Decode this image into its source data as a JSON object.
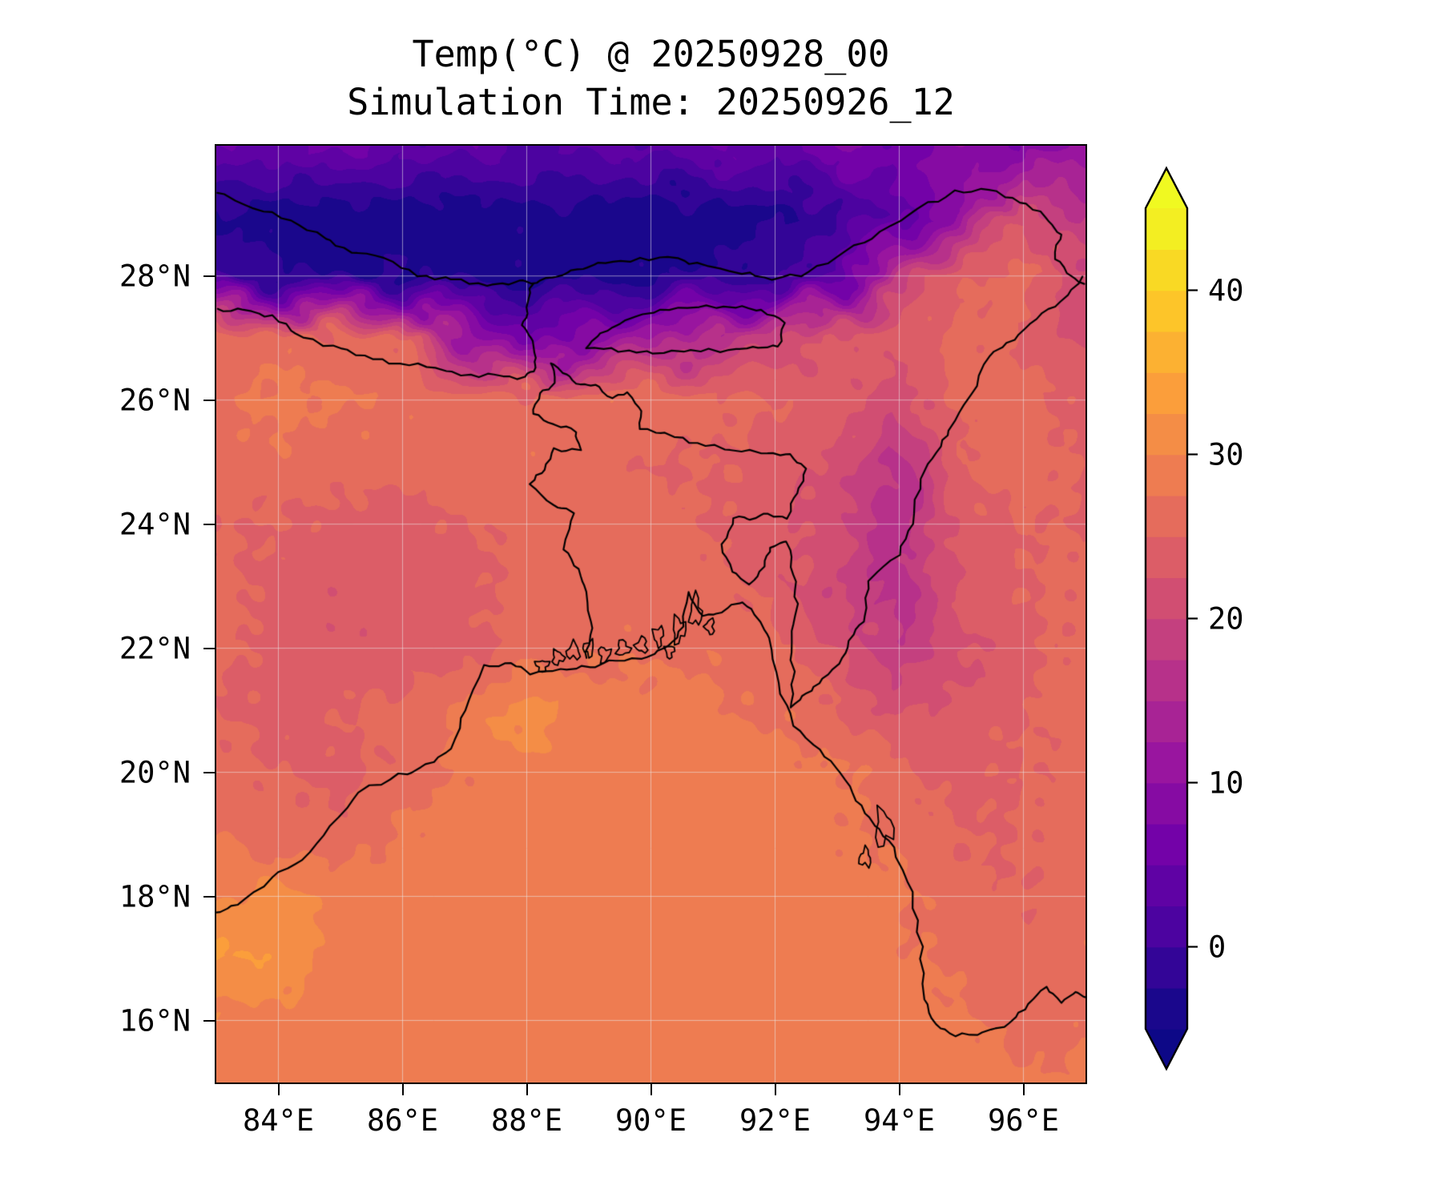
{
  "figure": {
    "title_line1": "Temp(°C) @ 20250928_00",
    "title_line2": "Simulation Time: 20250926_12",
    "text_color": "#000000",
    "background": "#ffffff"
  },
  "axes": {
    "lon_range": [
      83.0,
      97.0
    ],
    "lat_range": [
      15.0,
      30.1
    ],
    "x_ticks": [
      {
        "value": 84,
        "label": "84°E"
      },
      {
        "value": 86,
        "label": "86°E"
      },
      {
        "value": 88,
        "label": "88°E"
      },
      {
        "value": 90,
        "label": "90°E"
      },
      {
        "value": 92,
        "label": "92°E"
      },
      {
        "value": 94,
        "label": "94°E"
      },
      {
        "value": 96,
        "label": "96°E"
      }
    ],
    "y_ticks": [
      {
        "value": 16,
        "label": "16°N"
      },
      {
        "value": 18,
        "label": "18°N"
      },
      {
        "value": 20,
        "label": "20°N"
      },
      {
        "value": 22,
        "label": "22°N"
      },
      {
        "value": 24,
        "label": "24°N"
      },
      {
        "value": 26,
        "label": "26°N"
      },
      {
        "value": 28,
        "label": "28°N"
      }
    ]
  },
  "colorbar": {
    "ticks": [
      {
        "value": 0,
        "label": "0"
      },
      {
        "value": 10,
        "label": "10"
      },
      {
        "value": 20,
        "label": "20"
      },
      {
        "value": 30,
        "label": "30"
      },
      {
        "value": 40,
        "label": "40"
      }
    ],
    "level_min": -5,
    "level_max": 45,
    "level_step": 2.5,
    "extend": "both",
    "colormap": "plasma",
    "colormap_stops": [
      "#0d0887",
      "#46039f",
      "#7201a8",
      "#9c179e",
      "#bd3786",
      "#d8576b",
      "#ed7953",
      "#fb9f3a",
      "#fdca26",
      "#f0f921"
    ]
  },
  "chart_data": {
    "type": "heatmap",
    "subtype": "filled_contour_map",
    "title": "Temp(°C) @ 20250928_00",
    "subtitle": "Simulation Time: 20250926_12",
    "variable": "Temperature",
    "units": "°C",
    "valid_time": "20250928_00",
    "simulation_time": "20250926_12",
    "x_tick_labels": [
      "84°E",
      "86°E",
      "88°E",
      "90°E",
      "92°E",
      "94°E",
      "96°E"
    ],
    "y_tick_labels": [
      "16°N",
      "18°N",
      "20°N",
      "22°N",
      "24°N",
      "26°N",
      "28°N"
    ],
    "colorbar_tick_values": [
      0,
      10,
      20,
      30,
      40
    ],
    "grid": {
      "lons": [
        83,
        84,
        85,
        86,
        87,
        88,
        89,
        90,
        91,
        92,
        93,
        94,
        95,
        96,
        97
      ],
      "lats": [
        30,
        29,
        28,
        27,
        26,
        25,
        24,
        23,
        22,
        21,
        20,
        19,
        18,
        17,
        16,
        15
      ],
      "values_c": [
        [
          6,
          3,
          8,
          2,
          5,
          1,
          4,
          2,
          6,
          3,
          8,
          5,
          10,
          7,
          12
        ],
        [
          -3,
          -4,
          -5,
          -4,
          -5,
          -3,
          -4,
          -5,
          -4,
          -3,
          -1,
          4,
          10,
          22,
          16
        ],
        [
          0,
          -2,
          -3,
          -2,
          -4,
          -3,
          -4,
          -3,
          -2,
          -1,
          3,
          18,
          25,
          26,
          21
        ],
        [
          26,
          27,
          26,
          25,
          12,
          6,
          9,
          13,
          16,
          20,
          23,
          24,
          26,
          25,
          21
        ],
        [
          27,
          28,
          28,
          27,
          27,
          26,
          27,
          27,
          26,
          25,
          24,
          21,
          26,
          26,
          24
        ],
        [
          26,
          27,
          26,
          26,
          26,
          27,
          26,
          25,
          25,
          24,
          22,
          16,
          25,
          26,
          25
        ],
        [
          25,
          25,
          24,
          24,
          25,
          26,
          26,
          26,
          25,
          23,
          21,
          15,
          24,
          25,
          25
        ],
        [
          26,
          24,
          23,
          24,
          24,
          26,
          26,
          26,
          26,
          24,
          20,
          16,
          23,
          25,
          26
        ],
        [
          26,
          24,
          23,
          23,
          24,
          26,
          27,
          27,
          27,
          26,
          22,
          18,
          22,
          24,
          26
        ],
        [
          25,
          24,
          25,
          26,
          28,
          32,
          28,
          29,
          28,
          27,
          25,
          22,
          23,
          25,
          26
        ],
        [
          26,
          25,
          24,
          26,
          28,
          29,
          29,
          29,
          29,
          29,
          28,
          26,
          24,
          25,
          26
        ],
        [
          27,
          26,
          26,
          28,
          29,
          29,
          29,
          29,
          29,
          29,
          28,
          27,
          25,
          25,
          27
        ],
        [
          30,
          31,
          29,
          29,
          29,
          29,
          29,
          29,
          29,
          29,
          29,
          28,
          26,
          25,
          27
        ],
        [
          33,
          32,
          29,
          29,
          29,
          29,
          29,
          29,
          29,
          29,
          29,
          28,
          27,
          26,
          27
        ],
        [
          29,
          29,
          29,
          29,
          29,
          29,
          29,
          29,
          29,
          29,
          29,
          29,
          28,
          26,
          27
        ],
        [
          29,
          29,
          29,
          29,
          29,
          29,
          29,
          29,
          29,
          29,
          29,
          29,
          29,
          28,
          28
        ]
      ]
    },
    "overlays": {
      "coastlines": [
        [
          [
            83.0,
            17.75
          ],
          [
            83.35,
            17.85
          ],
          [
            83.9,
            18.3
          ],
          [
            84.4,
            18.6
          ],
          [
            84.85,
            19.15
          ],
          [
            85.3,
            19.7
          ],
          [
            85.95,
            19.95
          ],
          [
            86.4,
            20.1
          ],
          [
            86.8,
            20.4
          ],
          [
            87.0,
            21.0
          ],
          [
            87.3,
            21.7
          ],
          [
            87.75,
            21.75
          ],
          [
            88.05,
            21.6
          ],
          [
            88.55,
            21.65
          ],
          [
            89.0,
            21.7
          ],
          [
            89.45,
            21.8
          ],
          [
            89.95,
            21.85
          ],
          [
            90.3,
            22.05
          ],
          [
            90.5,
            22.35
          ],
          [
            90.6,
            22.9
          ],
          [
            90.85,
            22.5
          ],
          [
            91.15,
            22.6
          ],
          [
            91.5,
            22.75
          ],
          [
            91.75,
            22.5
          ],
          [
            91.9,
            22.15
          ],
          [
            92.05,
            21.45
          ],
          [
            92.3,
            20.75
          ],
          [
            92.7,
            20.35
          ],
          [
            93.05,
            20.0
          ],
          [
            93.3,
            19.55
          ],
          [
            93.6,
            19.15
          ],
          [
            93.9,
            18.8
          ],
          [
            94.2,
            18.05
          ],
          [
            94.35,
            17.2
          ],
          [
            94.4,
            16.35
          ],
          [
            94.6,
            15.95
          ],
          [
            94.9,
            15.75
          ],
          [
            95.35,
            15.8
          ],
          [
            95.8,
            15.95
          ],
          [
            96.1,
            16.25
          ],
          [
            96.35,
            16.55
          ],
          [
            96.6,
            16.3
          ],
          [
            96.85,
            16.45
          ],
          [
            97.0,
            16.4
          ]
        ]
      ],
      "borders": {
        "himalaya_crest": [
          [
            83.0,
            29.35
          ],
          [
            83.6,
            29.1
          ],
          [
            84.2,
            28.9
          ],
          [
            84.75,
            28.6
          ],
          [
            85.15,
            28.4
          ],
          [
            85.7,
            28.3
          ],
          [
            86.25,
            28.0
          ],
          [
            86.8,
            27.95
          ],
          [
            87.35,
            27.85
          ],
          [
            87.85,
            27.9
          ],
          [
            88.15,
            27.9
          ],
          [
            88.5,
            28.0
          ],
          [
            88.8,
            28.1
          ],
          [
            89.15,
            28.2
          ],
          [
            89.65,
            28.25
          ],
          [
            90.3,
            28.3
          ],
          [
            90.75,
            28.2
          ],
          [
            91.45,
            28.05
          ],
          [
            91.95,
            27.95
          ],
          [
            92.55,
            28.05
          ],
          [
            93.15,
            28.4
          ],
          [
            93.7,
            28.7
          ],
          [
            94.3,
            29.1
          ],
          [
            94.9,
            29.35
          ],
          [
            95.45,
            29.4
          ],
          [
            95.95,
            29.2
          ],
          [
            96.35,
            28.95
          ],
          [
            96.6,
            28.65
          ],
          [
            96.5,
            28.3
          ],
          [
            96.75,
            28.0
          ],
          [
            97.0,
            27.85
          ]
        ],
        "nepal_south": [
          [
            83.0,
            27.45
          ],
          [
            83.45,
            27.45
          ],
          [
            83.9,
            27.35
          ],
          [
            84.3,
            27.05
          ],
          [
            84.75,
            26.9
          ],
          [
            85.25,
            26.75
          ],
          [
            85.8,
            26.6
          ],
          [
            86.4,
            26.55
          ],
          [
            86.95,
            26.4
          ],
          [
            87.5,
            26.4
          ],
          [
            87.95,
            26.35
          ],
          [
            88.1,
            26.45
          ],
          [
            88.15,
            26.7
          ],
          [
            88.05,
            27.0
          ],
          [
            87.95,
            27.2
          ],
          [
            88.0,
            27.5
          ],
          [
            88.1,
            27.9
          ]
        ],
        "bhutan": [
          [
            88.95,
            26.85
          ],
          [
            89.5,
            26.8
          ],
          [
            90.05,
            26.75
          ],
          [
            90.65,
            26.8
          ],
          [
            91.25,
            26.8
          ],
          [
            91.65,
            26.85
          ],
          [
            92.05,
            26.85
          ],
          [
            92.15,
            27.25
          ],
          [
            91.8,
            27.45
          ],
          [
            91.35,
            27.5
          ],
          [
            90.75,
            27.5
          ],
          [
            90.15,
            27.45
          ],
          [
            89.6,
            27.3
          ],
          [
            89.2,
            27.05
          ],
          [
            88.95,
            26.85
          ]
        ],
        "bangladesh": [
          [
            88.95,
            21.85
          ],
          [
            89.05,
            22.3
          ],
          [
            88.95,
            22.9
          ],
          [
            88.85,
            23.25
          ],
          [
            88.6,
            23.6
          ],
          [
            88.75,
            24.2
          ],
          [
            88.4,
            24.3
          ],
          [
            88.05,
            24.65
          ],
          [
            88.3,
            24.9
          ],
          [
            88.45,
            25.2
          ],
          [
            88.85,
            25.2
          ],
          [
            88.8,
            25.5
          ],
          [
            88.45,
            25.6
          ],
          [
            88.1,
            25.8
          ],
          [
            88.2,
            26.1
          ],
          [
            88.45,
            26.3
          ],
          [
            88.4,
            26.6
          ],
          [
            88.65,
            26.4
          ],
          [
            88.85,
            26.25
          ],
          [
            89.1,
            26.25
          ],
          [
            89.35,
            26.0
          ],
          [
            89.6,
            26.15
          ],
          [
            89.8,
            25.9
          ],
          [
            89.85,
            25.55
          ],
          [
            90.25,
            25.45
          ],
          [
            90.75,
            25.3
          ],
          [
            91.3,
            25.2
          ],
          [
            91.9,
            25.15
          ],
          [
            92.25,
            25.1
          ],
          [
            92.5,
            24.9
          ],
          [
            92.35,
            24.5
          ],
          [
            92.2,
            24.1
          ],
          [
            91.9,
            24.15
          ],
          [
            91.6,
            24.1
          ],
          [
            91.35,
            24.1
          ],
          [
            91.15,
            23.65
          ],
          [
            91.3,
            23.25
          ],
          [
            91.6,
            23.0
          ],
          [
            91.8,
            23.3
          ],
          [
            91.95,
            23.65
          ],
          [
            92.2,
            23.7
          ],
          [
            92.3,
            23.2
          ],
          [
            92.35,
            22.7
          ],
          [
            92.25,
            22.1
          ],
          [
            92.3,
            21.5
          ],
          [
            92.25,
            21.05
          ]
        ],
        "india_myanmar": [
          [
            96.95,
            28.0
          ],
          [
            96.6,
            27.6
          ],
          [
            96.2,
            27.3
          ],
          [
            95.85,
            27.0
          ],
          [
            95.45,
            26.7
          ],
          [
            95.15,
            26.1
          ],
          [
            94.8,
            25.5
          ],
          [
            94.6,
            25.15
          ],
          [
            94.35,
            24.75
          ],
          [
            94.2,
            24.0
          ],
          [
            94.0,
            23.5
          ],
          [
            93.5,
            23.1
          ],
          [
            93.45,
            22.5
          ],
          [
            93.25,
            22.2
          ],
          [
            93.1,
            21.85
          ],
          [
            92.75,
            21.5
          ],
          [
            92.5,
            21.25
          ],
          [
            92.25,
            21.05
          ]
        ]
      },
      "islands": [
        [
          88.25,
          21.72,
          0.1,
          0.09
        ],
        [
          88.5,
          21.85,
          0.09,
          0.11
        ],
        [
          88.75,
          21.95,
          0.1,
          0.13
        ],
        [
          89.0,
          22.0,
          0.08,
          0.12
        ],
        [
          89.25,
          21.9,
          0.09,
          0.12
        ],
        [
          89.55,
          22.0,
          0.1,
          0.12
        ],
        [
          89.85,
          22.05,
          0.09,
          0.12
        ],
        [
          90.12,
          22.2,
          0.08,
          0.15
        ],
        [
          90.45,
          22.3,
          0.1,
          0.2
        ],
        [
          90.72,
          22.6,
          0.09,
          0.24
        ],
        [
          90.95,
          22.35,
          0.07,
          0.12
        ],
        [
          90.3,
          21.95,
          0.07,
          0.1
        ],
        [
          93.75,
          19.1,
          0.14,
          0.28
        ],
        [
          93.45,
          18.62,
          0.09,
          0.14
        ]
      ]
    }
  }
}
